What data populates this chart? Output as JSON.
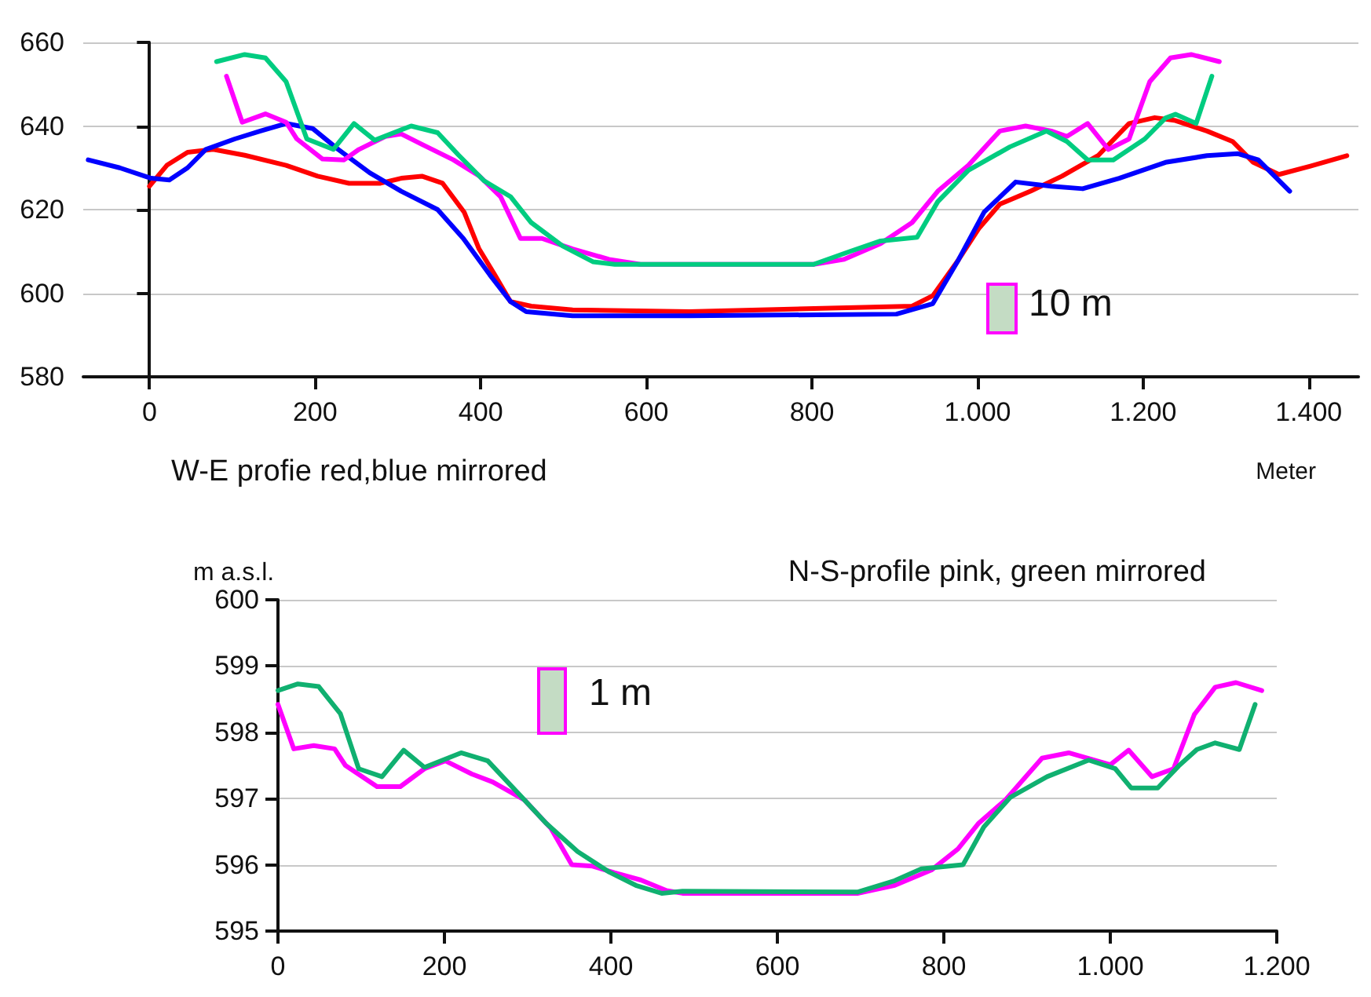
{
  "chart_data": [
    {
      "type": "line",
      "title": "W-E profie red,blue mirrored",
      "xlabel": "Meter",
      "annotations": [
        "10 m"
      ],
      "xlim": [
        -80,
        1460
      ],
      "ylim": [
        580,
        660
      ],
      "xticks": [
        0,
        200,
        400,
        600,
        800,
        {
          "value": 1000,
          "label": "1.000"
        },
        {
          "value": 1200,
          "label": "1.200"
        },
        {
          "value": 1400,
          "label": "1.400"
        }
      ],
      "yticks": [
        580,
        600,
        620,
        640,
        660
      ],
      "grid": "y",
      "marker": "none",
      "line_style": "solid",
      "series": [
        {
          "color": "#ff0000",
          "x": [
            0,
            21,
            46,
            77,
            115,
            165,
            203,
            241,
            279,
            304,
            329,
            354,
            380,
            398,
            417,
            436,
            461,
            511,
            652,
            921,
            946,
            977,
            1002,
            1027,
            1064,
            1102,
            1146,
            1183,
            1214,
            1239,
            1277,
            1308,
            1333,
            1364,
            1402,
            1446
          ],
          "values": [
            625.6,
            630.6,
            633.7,
            634.4,
            633,
            630.6,
            628,
            626.3,
            626.3,
            627.5,
            628,
            626.3,
            619.4,
            610.6,
            604.4,
            598,
            596.9,
            596,
            595.6,
            596.9,
            599.4,
            608,
            615.6,
            621.3,
            624.4,
            628,
            633,
            640.6,
            642,
            641.3,
            638.8,
            636.3,
            631.3,
            628.4,
            630.4,
            632.9
          ]
        },
        {
          "color": "#0000ff",
          "x": [
            -74,
            -36,
            2,
            24,
            46,
            68,
            103,
            134,
            165,
            197,
            228,
            266,
            304,
            348,
            379,
            411,
            436,
            455,
            511,
            652,
            902,
            946,
            977,
            1008,
            1046,
            1089,
            1127,
            1171,
            1227,
            1277,
            1314,
            1339,
            1377
          ],
          "values": [
            631.9,
            630,
            627.5,
            627.1,
            630,
            634.4,
            636.9,
            638.8,
            640.6,
            639.4,
            634.4,
            628.8,
            624.4,
            620,
            613.1,
            604.4,
            598,
            595.6,
            594.6,
            594.6,
            595,
            597.5,
            608,
            619.4,
            626.6,
            625.6,
            625,
            627.5,
            631.3,
            632.9,
            633.4,
            631.9,
            624.4
          ]
        },
        {
          "color": "#ff00ff",
          "x": [
            93,
            112,
            140,
            165,
            178,
            209,
            235,
            253,
            285,
            304,
            329,
            367,
            398,
            424,
            448,
            474,
            511,
            555,
            593,
            802,
            839,
            883,
            921,
            952,
            989,
            1027,
            1058,
            1089,
            1108,
            1133,
            1158,
            1183,
            1208,
            1233,
            1258,
            1292
          ],
          "values": [
            651.9,
            640.9,
            642.9,
            640.9,
            636.9,
            632.1,
            631.9,
            634.4,
            637.5,
            638.1,
            635.6,
            631.9,
            628.1,
            623.1,
            613.1,
            613.1,
            610.6,
            608.1,
            606.9,
            606.9,
            608.1,
            611.9,
            616.9,
            624.4,
            630.6,
            638.8,
            640,
            638.8,
            637.5,
            640.6,
            634.4,
            636.9,
            650.6,
            656.3,
            657.1,
            655.4
          ]
        },
        {
          "color": "#00cc80",
          "x": [
            81,
            115,
            140,
            165,
            190,
            222,
            247,
            272,
            316,
            348,
            373,
            404,
            436,
            461,
            499,
            536,
            562,
            802,
            846,
            883,
            927,
            952,
            989,
            1039,
            1083,
            1108,
            1133,
            1164,
            1202,
            1227,
            1239,
            1264,
            1283
          ],
          "values": [
            655.4,
            657.1,
            656.3,
            650.6,
            636.9,
            634.4,
            640.6,
            636.6,
            640,
            638.4,
            633.1,
            626.9,
            623.1,
            616.9,
            611.3,
            607.5,
            606.9,
            606.9,
            610,
            612.5,
            613.4,
            621.9,
            629.4,
            635,
            638.8,
            636.3,
            631.9,
            631.9,
            636.9,
            641.9,
            642.8,
            640.6,
            651.9
          ]
        }
      ]
    },
    {
      "type": "line",
      "title": "N-S-profile pink, green mirrored",
      "ylabel": "m a.s.l.",
      "annotations": [
        "1 m"
      ],
      "xlim": [
        0,
        1200
      ],
      "ylim": [
        595,
        600
      ],
      "xticks": [
        0,
        200,
        400,
        600,
        800,
        {
          "value": 1000,
          "label": "1.000"
        },
        {
          "value": 1200,
          "label": "1.200"
        }
      ],
      "yticks": [
        595,
        596,
        597,
        598,
        599,
        600
      ],
      "grid": "y",
      "marker": "none",
      "line_style": "solid",
      "series": [
        {
          "color": "#ff00ff",
          "x": [
            0,
            19,
            43,
            68,
            81,
            119,
            147,
            176,
            201,
            233,
            258,
            296,
            328,
            353,
            378,
            404,
            436,
            467,
            486,
            599,
            697,
            741,
            785,
            817,
            842,
            874,
            918,
            950,
            1000,
            1022,
            1050,
            1076,
            1101,
            1126,
            1151,
            1182
          ],
          "values": [
            598.42,
            597.75,
            597.8,
            597.75,
            597.5,
            597.18,
            597.18,
            597.45,
            597.57,
            597.37,
            597.25,
            596.98,
            596.55,
            596,
            595.98,
            595.88,
            595.77,
            595.61,
            595.57,
            595.57,
            595.57,
            595.69,
            595.92,
            596.24,
            596.63,
            596.98,
            597.61,
            597.69,
            597.51,
            597.73,
            597.33,
            597.45,
            598.27,
            598.68,
            598.75,
            598.63
          ]
        },
        {
          "color": "#10b070",
          "x": [
            0,
            24,
            49,
            75,
            97,
            125,
            151,
            176,
            220,
            252,
            296,
            322,
            360,
            398,
            430,
            461,
            486,
            697,
            741,
            773,
            823,
            848,
            880,
            924,
            974,
            1006,
            1025,
            1057,
            1082,
            1104,
            1126,
            1155,
            1174
          ],
          "values": [
            598.63,
            598.73,
            598.69,
            598.28,
            597.45,
            597.33,
            597.73,
            597.47,
            597.69,
            597.57,
            596.98,
            596.63,
            596.2,
            595.89,
            595.69,
            595.57,
            595.6,
            595.59,
            595.76,
            595.94,
            596,
            596.57,
            597.02,
            597.33,
            597.58,
            597.45,
            597.16,
            597.16,
            597.49,
            597.74,
            597.84,
            597.74,
            598.42
          ]
        }
      ]
    }
  ]
}
